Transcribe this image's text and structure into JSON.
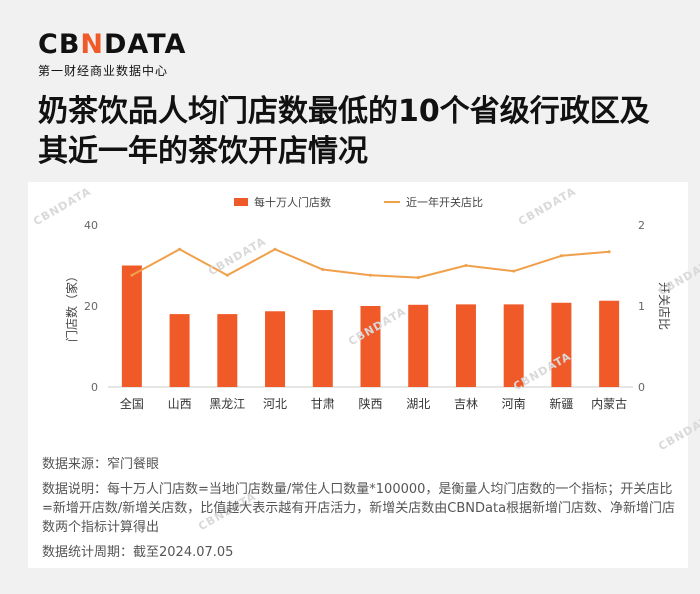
{
  "brand": {
    "logo_left": "CB",
    "logo_accent": "N",
    "logo_right": "DATA",
    "subtitle": "第一财经商业数据中心"
  },
  "title": "奶茶饮品人均门店数最低的10个省级行政区及其近一年的茶饮开店情况",
  "watermark_text": "CBNDATA",
  "colors": {
    "bar": "#ef5a28",
    "line": "#f0a04b",
    "axis_text": "#666666"
  },
  "chart_data": {
    "type": "bar",
    "categories": [
      "全国",
      "山西",
      "黑龙江",
      "河北",
      "甘肃",
      "陕西",
      "湖北",
      "吉林",
      "河南",
      "新疆",
      "内蒙古"
    ],
    "series": [
      {
        "name": "每十万人门店数",
        "type": "bar",
        "axis": "left",
        "values": [
          30.0,
          18.0,
          18.0,
          18.7,
          19.0,
          20.0,
          20.3,
          20.4,
          20.4,
          20.8,
          21.3
        ]
      },
      {
        "name": "近一年开关店比",
        "type": "line",
        "axis": "right",
        "values": [
          1.38,
          1.7,
          1.38,
          1.7,
          1.45,
          1.38,
          1.35,
          1.5,
          1.43,
          1.62,
          1.67
        ]
      }
    ],
    "ylabel": "门店数（家）",
    "ylabel_right": "开关店比",
    "ylim": [
      0,
      40
    ],
    "ylim_right": [
      0,
      2
    ],
    "yticks": [
      "0",
      "20",
      "40"
    ],
    "yticks_right": [
      "0",
      "1",
      "2"
    ],
    "legend_position": "top",
    "grid": false
  },
  "notes": {
    "source": "数据来源：窄门餐眼",
    "explanation": "数据说明：每十万人门店数=当地门店数量/常住人口数量*100000，是衡量人均门店数的一个指标；开关店比=新增开店数/新增关店数，比值越大表示越有开店活力，新增关店数由CBNData根据新增门店数、净新增门店数两个指标计算得出",
    "period": "数据统计周期：截至2024.07.05"
  }
}
